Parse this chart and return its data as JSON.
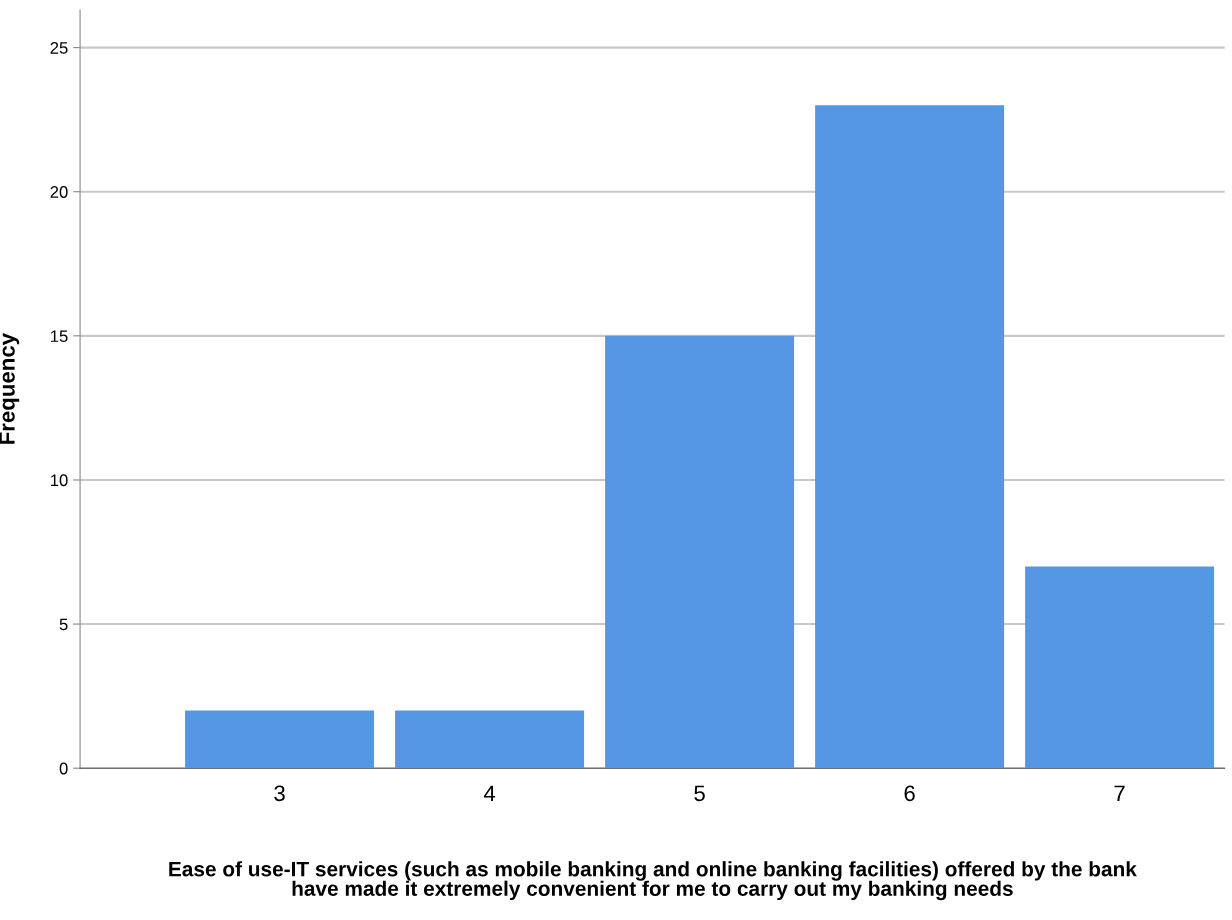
{
  "chart_data": {
    "type": "bar",
    "xlabel": "Ease of use-IT services (such as mobile banking and online banking facilities) offered by the bank\nhave made it extremely convenient for me to carry out my banking needs",
    "ylabel": "Frequency",
    "categories": [
      "3",
      "4",
      "5",
      "6",
      "7"
    ],
    "values": [
      2,
      2,
      15,
      23,
      7
    ],
    "color": "#5597e4",
    "ylim": [
      0,
      26.3
    ],
    "yticks": [
      0,
      5,
      10,
      15,
      20,
      25
    ],
    "grid": "y"
  }
}
